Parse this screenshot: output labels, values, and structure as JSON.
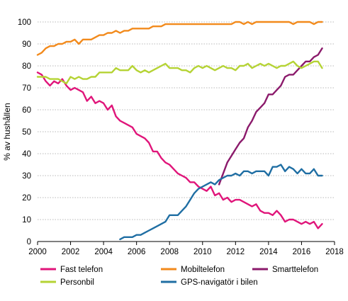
{
  "chart_data": {
    "type": "line",
    "title": "",
    "xlabel": "",
    "ylabel": "% av hushållen",
    "xlim": [
      2000,
      2018
    ],
    "ylim": [
      0,
      100
    ],
    "x_ticks": [
      2000,
      2002,
      2004,
      2006,
      2008,
      2010,
      2012,
      2014,
      2016,
      2018
    ],
    "y_ticks": [
      0,
      10,
      20,
      30,
      40,
      50,
      60,
      70,
      80,
      90,
      100
    ],
    "grid": "horizontal",
    "legend_position": "bottom",
    "series": [
      {
        "name": "Fast telefon",
        "color": "#e0157a",
        "x": [
          2000.0,
          2000.25,
          2000.5,
          2000.75,
          2001.0,
          2001.25,
          2001.5,
          2001.75,
          2002.0,
          2002.25,
          2002.5,
          2002.75,
          2003.0,
          2003.25,
          2003.5,
          2003.75,
          2004.0,
          2004.25,
          2004.5,
          2004.75,
          2005.0,
          2005.25,
          2005.5,
          2005.75,
          2006.0,
          2006.25,
          2006.5,
          2006.75,
          2007.0,
          2007.25,
          2007.5,
          2007.75,
          2008.0,
          2008.25,
          2008.5,
          2008.75,
          2009.0,
          2009.25,
          2009.5,
          2009.75,
          2010.0,
          2010.25,
          2010.5,
          2010.75,
          2011.0,
          2011.25,
          2011.5,
          2011.75,
          2012.0,
          2012.25,
          2012.5,
          2012.75,
          2013.0,
          2013.25,
          2013.5,
          2013.75,
          2014.0,
          2014.25,
          2014.5,
          2014.75,
          2015.0,
          2015.25,
          2015.5,
          2015.75,
          2016.0,
          2016.25,
          2016.5,
          2016.75,
          2017.0,
          2017.25
        ],
        "values": [
          77,
          76,
          73,
          71,
          73,
          72,
          74,
          71,
          69,
          70,
          69,
          68,
          64,
          66,
          63,
          64,
          63,
          60,
          62,
          57,
          55,
          54,
          53,
          52,
          49,
          48,
          47,
          45,
          41,
          41,
          38,
          36,
          35,
          33,
          31,
          30,
          29,
          27,
          27,
          25,
          24,
          23,
          25,
          21,
          22,
          19,
          20,
          18,
          19,
          19,
          18,
          17,
          16,
          17,
          14,
          13,
          13,
          12,
          14,
          12,
          9,
          10,
          10,
          9,
          8,
          9,
          8,
          9,
          6,
          8
        ]
      },
      {
        "name": "Mobiltelefon",
        "color": "#f28a1c",
        "x": [
          2000.0,
          2000.25,
          2000.5,
          2000.75,
          2001.0,
          2001.25,
          2001.5,
          2001.75,
          2002.0,
          2002.25,
          2002.5,
          2002.75,
          2003.0,
          2003.25,
          2003.5,
          2003.75,
          2004.0,
          2004.25,
          2004.5,
          2004.75,
          2005.0,
          2005.25,
          2005.5,
          2005.75,
          2006.0,
          2006.25,
          2006.5,
          2006.75,
          2007.0,
          2007.25,
          2007.5,
          2007.75,
          2008.0,
          2008.25,
          2008.5,
          2008.75,
          2009.0,
          2009.25,
          2009.5,
          2009.75,
          2010.0,
          2010.25,
          2010.5,
          2010.75,
          2011.0,
          2011.25,
          2011.5,
          2011.75,
          2012.0,
          2012.25,
          2012.5,
          2012.75,
          2013.0,
          2013.25,
          2013.5,
          2013.75,
          2014.0,
          2014.25,
          2014.5,
          2014.75,
          2015.0,
          2015.25,
          2015.5,
          2015.75,
          2016.0,
          2016.25,
          2016.5,
          2016.75,
          2017.0,
          2017.25
        ],
        "values": [
          85,
          86,
          88,
          89,
          89,
          90,
          90,
          91,
          91,
          92,
          90,
          92,
          92,
          92,
          93,
          94,
          94,
          95,
          95,
          96,
          95,
          96,
          96,
          97,
          97,
          97,
          97,
          97,
          98,
          98,
          98,
          99,
          99,
          99,
          99,
          99,
          99,
          99,
          99,
          99,
          99,
          99,
          99,
          99,
          99,
          99,
          99,
          99,
          100,
          100,
          99,
          100,
          99,
          100,
          100,
          100,
          100,
          100,
          100,
          100,
          100,
          100,
          99,
          100,
          100,
          100,
          100,
          99,
          100,
          100
        ]
      },
      {
        "name": "Smarttelefon",
        "color": "#8b1a6b",
        "x": [
          2011.0,
          2011.25,
          2011.5,
          2011.75,
          2012.0,
          2012.25,
          2012.5,
          2012.75,
          2013.0,
          2013.25,
          2013.5,
          2013.75,
          2014.0,
          2014.25,
          2014.5,
          2014.75,
          2015.0,
          2015.25,
          2015.5,
          2015.75,
          2016.0,
          2016.25,
          2016.5,
          2016.75,
          2017.0,
          2017.25
        ],
        "values": [
          26,
          31,
          36,
          39,
          42,
          45,
          47,
          52,
          55,
          59,
          61,
          63,
          67,
          67,
          69,
          71,
          75,
          76,
          76,
          78,
          80,
          82,
          82,
          84,
          85,
          88
        ]
      },
      {
        "name": "Personbil",
        "color": "#b5d334",
        "x": [
          2000.0,
          2000.25,
          2000.5,
          2000.75,
          2001.0,
          2001.25,
          2001.5,
          2001.75,
          2002.0,
          2002.25,
          2002.5,
          2002.75,
          2003.0,
          2003.25,
          2003.5,
          2003.75,
          2004.0,
          2004.25,
          2004.5,
          2004.75,
          2005.0,
          2005.25,
          2005.5,
          2005.75,
          2006.0,
          2006.25,
          2006.5,
          2006.75,
          2007.0,
          2007.25,
          2007.5,
          2007.75,
          2008.0,
          2008.25,
          2008.5,
          2008.75,
          2009.0,
          2009.25,
          2009.5,
          2009.75,
          2010.0,
          2010.25,
          2010.5,
          2010.75,
          2011.0,
          2011.25,
          2011.5,
          2011.75,
          2012.0,
          2012.25,
          2012.5,
          2012.75,
          2013.0,
          2013.25,
          2013.5,
          2013.75,
          2014.0,
          2014.25,
          2014.5,
          2014.75,
          2015.0,
          2015.25,
          2015.5,
          2015.75,
          2016.0,
          2016.25,
          2016.5,
          2016.75,
          2017.0,
          2017.25
        ],
        "values": [
          75,
          75,
          75,
          74,
          74,
          74,
          73,
          72,
          75,
          74,
          75,
          74,
          74,
          75,
          75,
          77,
          77,
          77,
          77,
          79,
          78,
          78,
          78,
          80,
          78,
          77,
          78,
          77,
          78,
          79,
          80,
          81,
          79,
          79,
          79,
          78,
          78,
          77,
          79,
          80,
          79,
          80,
          79,
          78,
          79,
          80,
          79,
          79,
          78,
          80,
          80,
          81,
          79,
          80,
          81,
          80,
          81,
          80,
          79,
          80,
          80,
          81,
          82,
          80,
          79,
          80,
          81,
          82,
          82,
          79
        ]
      },
      {
        "name": "GPS-navigatör i bilen",
        "color": "#1f6ea3",
        "x": [
          2005.0,
          2005.25,
          2005.5,
          2005.75,
          2006.0,
          2006.25,
          2006.5,
          2006.75,
          2007.0,
          2007.25,
          2007.5,
          2007.75,
          2008.0,
          2008.25,
          2008.5,
          2008.75,
          2009.0,
          2009.25,
          2009.5,
          2009.75,
          2010.0,
          2010.25,
          2010.5,
          2010.75,
          2011.0,
          2011.25,
          2011.5,
          2011.75,
          2012.0,
          2012.25,
          2012.5,
          2012.75,
          2013.0,
          2013.25,
          2013.5,
          2013.75,
          2014.0,
          2014.25,
          2014.5,
          2014.75,
          2015.0,
          2015.25,
          2015.5,
          2015.75,
          2016.0,
          2016.25,
          2016.5,
          2016.75,
          2017.0,
          2017.25
        ],
        "values": [
          1,
          2,
          2,
          2,
          3,
          3,
          4,
          5,
          6,
          7,
          8,
          9,
          12,
          12,
          12,
          14,
          16,
          19,
          22,
          24,
          25,
          26,
          27,
          26,
          28,
          29,
          30,
          30,
          31,
          30,
          32,
          32,
          31,
          32,
          32,
          32,
          30,
          34,
          34,
          35,
          32,
          34,
          33,
          31,
          33,
          31,
          31,
          33,
          30,
          30
        ]
      }
    ]
  }
}
